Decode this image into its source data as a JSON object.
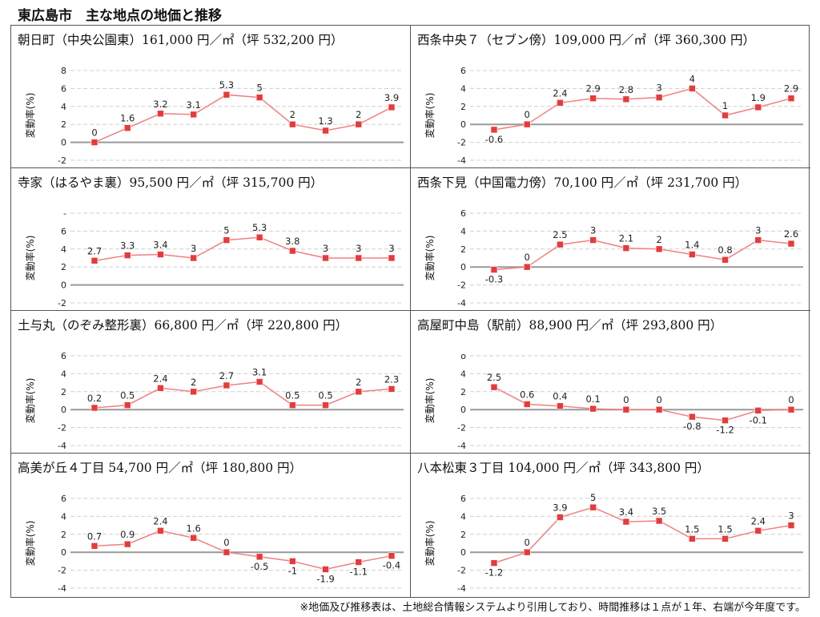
{
  "page": {
    "title": "東広島市　主な地点の地価と推移"
  },
  "footnote": "※地価及び推移表は、土地総合情報システムより引用しており、時間推移は１点が１年、右端が今年度です。",
  "style": {
    "line_color": "#f08080",
    "marker_color": "#e83a3a",
    "zero_line_color": "#999999",
    "grid_color": "#cfcfcf"
  },
  "chart_data": [
    {
      "type": "line",
      "title": "朝日町（中央公園東）161,000 円／㎡（坪 532,200 円）",
      "ylabel": "変動率(%)",
      "yticks": [
        "8",
        "6",
        "4",
        "2",
        "0",
        "-2"
      ],
      "ylim": [
        -2,
        8
      ],
      "series": [
        {
          "values": [
            0,
            1.6,
            3.2,
            3.1,
            5.3,
            5,
            2,
            1.3,
            2,
            3.9
          ],
          "labels": [
            "0",
            "1.6",
            "3.2",
            "3.1",
            "5.3",
            "5",
            "2",
            "1.3",
            "2",
            "3.9"
          ],
          "label_pos": [
            "a",
            "a",
            "a",
            "a",
            "a",
            "a",
            "a",
            "a",
            "a",
            "a"
          ]
        }
      ]
    },
    {
      "type": "line",
      "title": "西条中央７（セブン傍）109,000 円／㎡（坪 360,300 円）",
      "ylabel": "変動率(%)",
      "yticks": [
        "6",
        "4",
        "2",
        "0",
        "-2",
        "-4"
      ],
      "ylim": [
        -4,
        6
      ],
      "series": [
        {
          "values": [
            -0.6,
            0,
            2.4,
            2.9,
            2.8,
            3,
            4,
            1,
            1.9,
            2.9
          ],
          "labels": [
            "-0.6",
            "0",
            "2.4",
            "2.9",
            "2.8",
            "3",
            "4",
            "1",
            "1.9",
            "2.9"
          ],
          "label_pos": [
            "b",
            "a",
            "a",
            "a",
            "a",
            "a",
            "a",
            "a",
            "a",
            "a"
          ]
        }
      ]
    },
    {
      "type": "line",
      "title": "寺家（はるやま裏）95,500 円／㎡（坪 315,700 円）",
      "ylabel": "変動率(%)",
      "yticks": [
        "-",
        "6",
        "4",
        "2",
        "0",
        "-2"
      ],
      "ylim": [
        -2,
        8
      ],
      "series": [
        {
          "values": [
            2.7,
            3.3,
            3.4,
            3,
            5,
            5.3,
            3.8,
            3,
            3,
            3
          ],
          "labels": [
            "2.7",
            "3.3",
            "3.4",
            "3",
            "5",
            "5.3",
            "3.8",
            "3",
            "3",
            "3"
          ],
          "label_pos": [
            "a",
            "a",
            "a",
            "a",
            "a",
            "a",
            "a",
            "a",
            "a",
            "a"
          ]
        }
      ]
    },
    {
      "type": "line",
      "title": "西条下見（中国電力傍）70,100 円／㎡（坪 231,700 円）",
      "ylabel": "変動率(%)",
      "yticks": [
        "6",
        "4",
        "2",
        "0",
        "-2",
        "-4"
      ],
      "ylim": [
        -4,
        6
      ],
      "series": [
        {
          "values": [
            -0.3,
            0,
            2.5,
            3,
            2.1,
            2,
            1.4,
            0.8,
            3,
            2.6
          ],
          "labels": [
            "-0.3",
            "0",
            "2.5",
            "3",
            "2.1",
            "2",
            "1.4",
            "0.8",
            "3",
            "2.6"
          ],
          "label_pos": [
            "b",
            "a",
            "a",
            "a",
            "a",
            "a",
            "a",
            "a",
            "a",
            "a"
          ]
        }
      ]
    },
    {
      "type": "line",
      "title": "土与丸（のぞみ整形裏）66,800 円／㎡（坪 220,800 円）",
      "ylabel": "変動率(%)",
      "yticks": [
        "6",
        "4",
        "2",
        "0",
        "-2",
        "-4"
      ],
      "ylim": [
        -4,
        6
      ],
      "series": [
        {
          "values": [
            0.2,
            0.5,
            2.4,
            2,
            2.7,
            3.1,
            0.5,
            0.5,
            2,
            2.3
          ],
          "labels": [
            "0.2",
            "0.5",
            "2.4",
            "2",
            "2.7",
            "3.1",
            "0.5",
            "0.5",
            "2",
            "2.3"
          ],
          "label_pos": [
            "a",
            "a",
            "a",
            "a",
            "a",
            "a",
            "a",
            "a",
            "a",
            "a"
          ]
        }
      ]
    },
    {
      "type": "line",
      "title": "高屋町中島（駅前）88,900 円／㎡（坪 293,800 円）",
      "ylabel": "変動率(%)",
      "yticks": [
        "o",
        "4",
        "2",
        "0",
        "-2",
        "-4"
      ],
      "ylim": [
        -4,
        6
      ],
      "series": [
        {
          "values": [
            2.5,
            0.6,
            0.4,
            0.1,
            0,
            0,
            -0.8,
            -1.2,
            -0.1,
            0
          ],
          "labels": [
            "2.5",
            "0.6",
            "0.4",
            "0.1",
            "0",
            "0",
            "-0.8",
            "-1.2",
            "-0.1",
            "0"
          ],
          "label_pos": [
            "a",
            "a",
            "a",
            "a",
            "a",
            "a",
            "b",
            "b",
            "b",
            "a"
          ]
        }
      ]
    },
    {
      "type": "line",
      "title": "高美が丘４丁目 54,700 円／㎡（坪 180,800 円）",
      "ylabel": "変動率(%)",
      "yticks": [
        "6",
        "4",
        "2",
        "0",
        "-2",
        "-4"
      ],
      "ylim": [
        -4,
        6
      ],
      "series": [
        {
          "values": [
            0.7,
            0.9,
            2.4,
            1.6,
            0,
            -0.5,
            -1,
            -1.9,
            -1.1,
            -0.4
          ],
          "labels": [
            "0.7",
            "0.9",
            "2.4",
            "1.6",
            "0",
            "-0.5",
            "-1",
            "-1.9",
            "-1.1",
            "-0.4"
          ],
          "label_pos": [
            "a",
            "a",
            "a",
            "a",
            "a",
            "b",
            "b",
            "b",
            "b",
            "b"
          ]
        }
      ]
    },
    {
      "type": "line",
      "title": "八本松東３丁目 104,000 円／㎡（坪 343,800 円）",
      "ylabel": "変動率(%)",
      "yticks": [
        "6",
        "4",
        "2",
        "0",
        "-2",
        "-4"
      ],
      "ylim": [
        -4,
        6
      ],
      "series": [
        {
          "values": [
            -1.2,
            0,
            3.9,
            5,
            3.4,
            3.5,
            1.5,
            1.5,
            2.4,
            3
          ],
          "labels": [
            "-1.2",
            "0",
            "3.9",
            "5",
            "3.4",
            "3.5",
            "1.5",
            "1.5",
            "2.4",
            "3"
          ],
          "label_pos": [
            "b",
            "a",
            "a",
            "a",
            "a",
            "a",
            "a",
            "a",
            "a",
            "a"
          ]
        }
      ]
    }
  ]
}
